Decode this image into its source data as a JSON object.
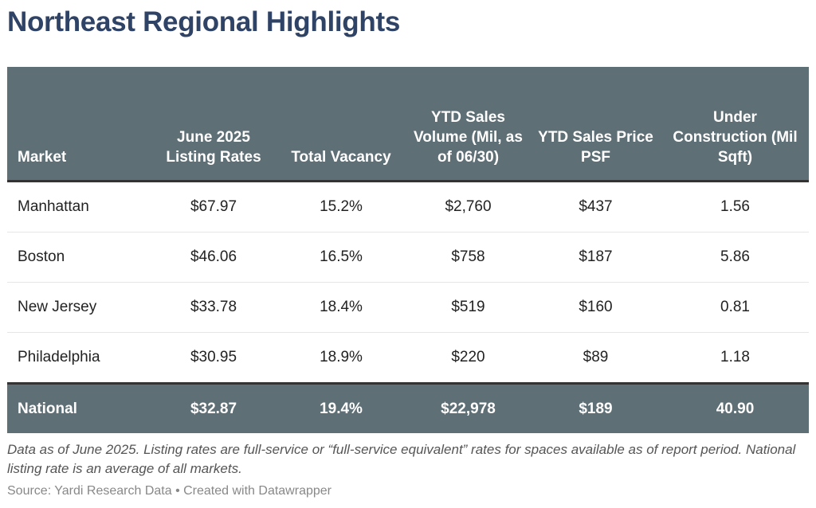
{
  "title": "Northeast Regional Highlights",
  "chart_data": {
    "type": "table",
    "columns": [
      "Market",
      "June 2025 Listing Rates",
      "Total Vacancy",
      "YTD Sales Volume (Mil, as of 06/30)",
      "YTD Sales Price PSF",
      "Under Construction (Mil Sqft)"
    ],
    "rows": [
      [
        "Manhattan",
        "$67.97",
        "15.2%",
        "$2,760",
        "$437",
        "1.56"
      ],
      [
        "Boston",
        "$46.06",
        "16.5%",
        "$758",
        "$187",
        "5.86"
      ],
      [
        "New Jersey",
        "$33.78",
        "18.4%",
        "$519",
        "$160",
        "0.81"
      ],
      [
        "Philadelphia",
        "$30.95",
        "18.9%",
        "$220",
        "$89",
        "1.18"
      ]
    ],
    "total_row": [
      "National",
      "$32.87",
      "19.4%",
      "$22,978",
      "$189",
      "40.90"
    ]
  },
  "colors": {
    "header_bg": "#5f6f76",
    "title": "#2f4366"
  },
  "note": "Data as of June 2025. Listing rates are full-service or “full-service equivalent” rates for spaces available as of report period. National listing rate is an average of all markets.",
  "source": "Source: Yardi Research Data • Created with Datawrapper"
}
